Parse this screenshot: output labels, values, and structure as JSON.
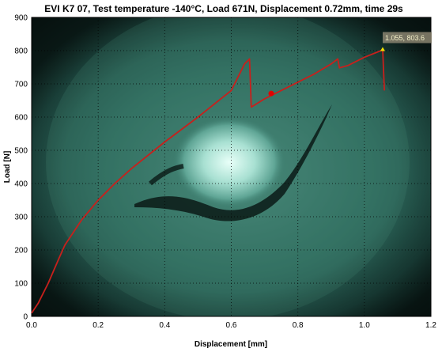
{
  "chart_data": {
    "type": "line",
    "title": "EVI K7 07, Test temperature -140°C, Load 671N, Displacement 0.72mm, time 29s",
    "xlabel": "Displacement [mm]",
    "ylabel": "Load [N]",
    "xlim": [
      0,
      1.2
    ],
    "ylim": [
      0,
      900
    ],
    "xticks": [
      "0.0",
      "0.2",
      "0.4",
      "0.6",
      "0.8",
      "1.0",
      "1.2"
    ],
    "yticks": [
      "0",
      "100",
      "200",
      "300",
      "400",
      "500",
      "600",
      "700",
      "800",
      "900"
    ],
    "grid": true,
    "background": "fracture surface photograph (dark teal)",
    "line_color": "#c8201c",
    "series": [
      {
        "x": [
          0,
          0.02,
          0.05,
          0.08,
          0.1,
          0.15,
          0.2,
          0.25,
          0.3,
          0.4,
          0.5,
          0.6,
          0.64,
          0.655,
          0.66,
          0.7,
          0.75,
          0.8,
          0.85,
          0.9,
          0.92,
          0.925,
          0.95,
          1.0,
          1.05,
          1.055,
          1.06
        ],
        "y": [
          10,
          40,
          100,
          170,
          215,
          290,
          350,
          400,
          445,
          525,
          600,
          680,
          760,
          775,
          630,
          655,
          680,
          705,
          730,
          760,
          775,
          748,
          755,
          780,
          800,
          804,
          680
        ]
      }
    ],
    "current_point": {
      "x": 0.72,
      "y": 671,
      "color": "#e00000"
    },
    "annotation": {
      "text": "1.055, 803.6",
      "x": 1.055,
      "y": 803.6,
      "marker_color": "#f0e000"
    }
  }
}
